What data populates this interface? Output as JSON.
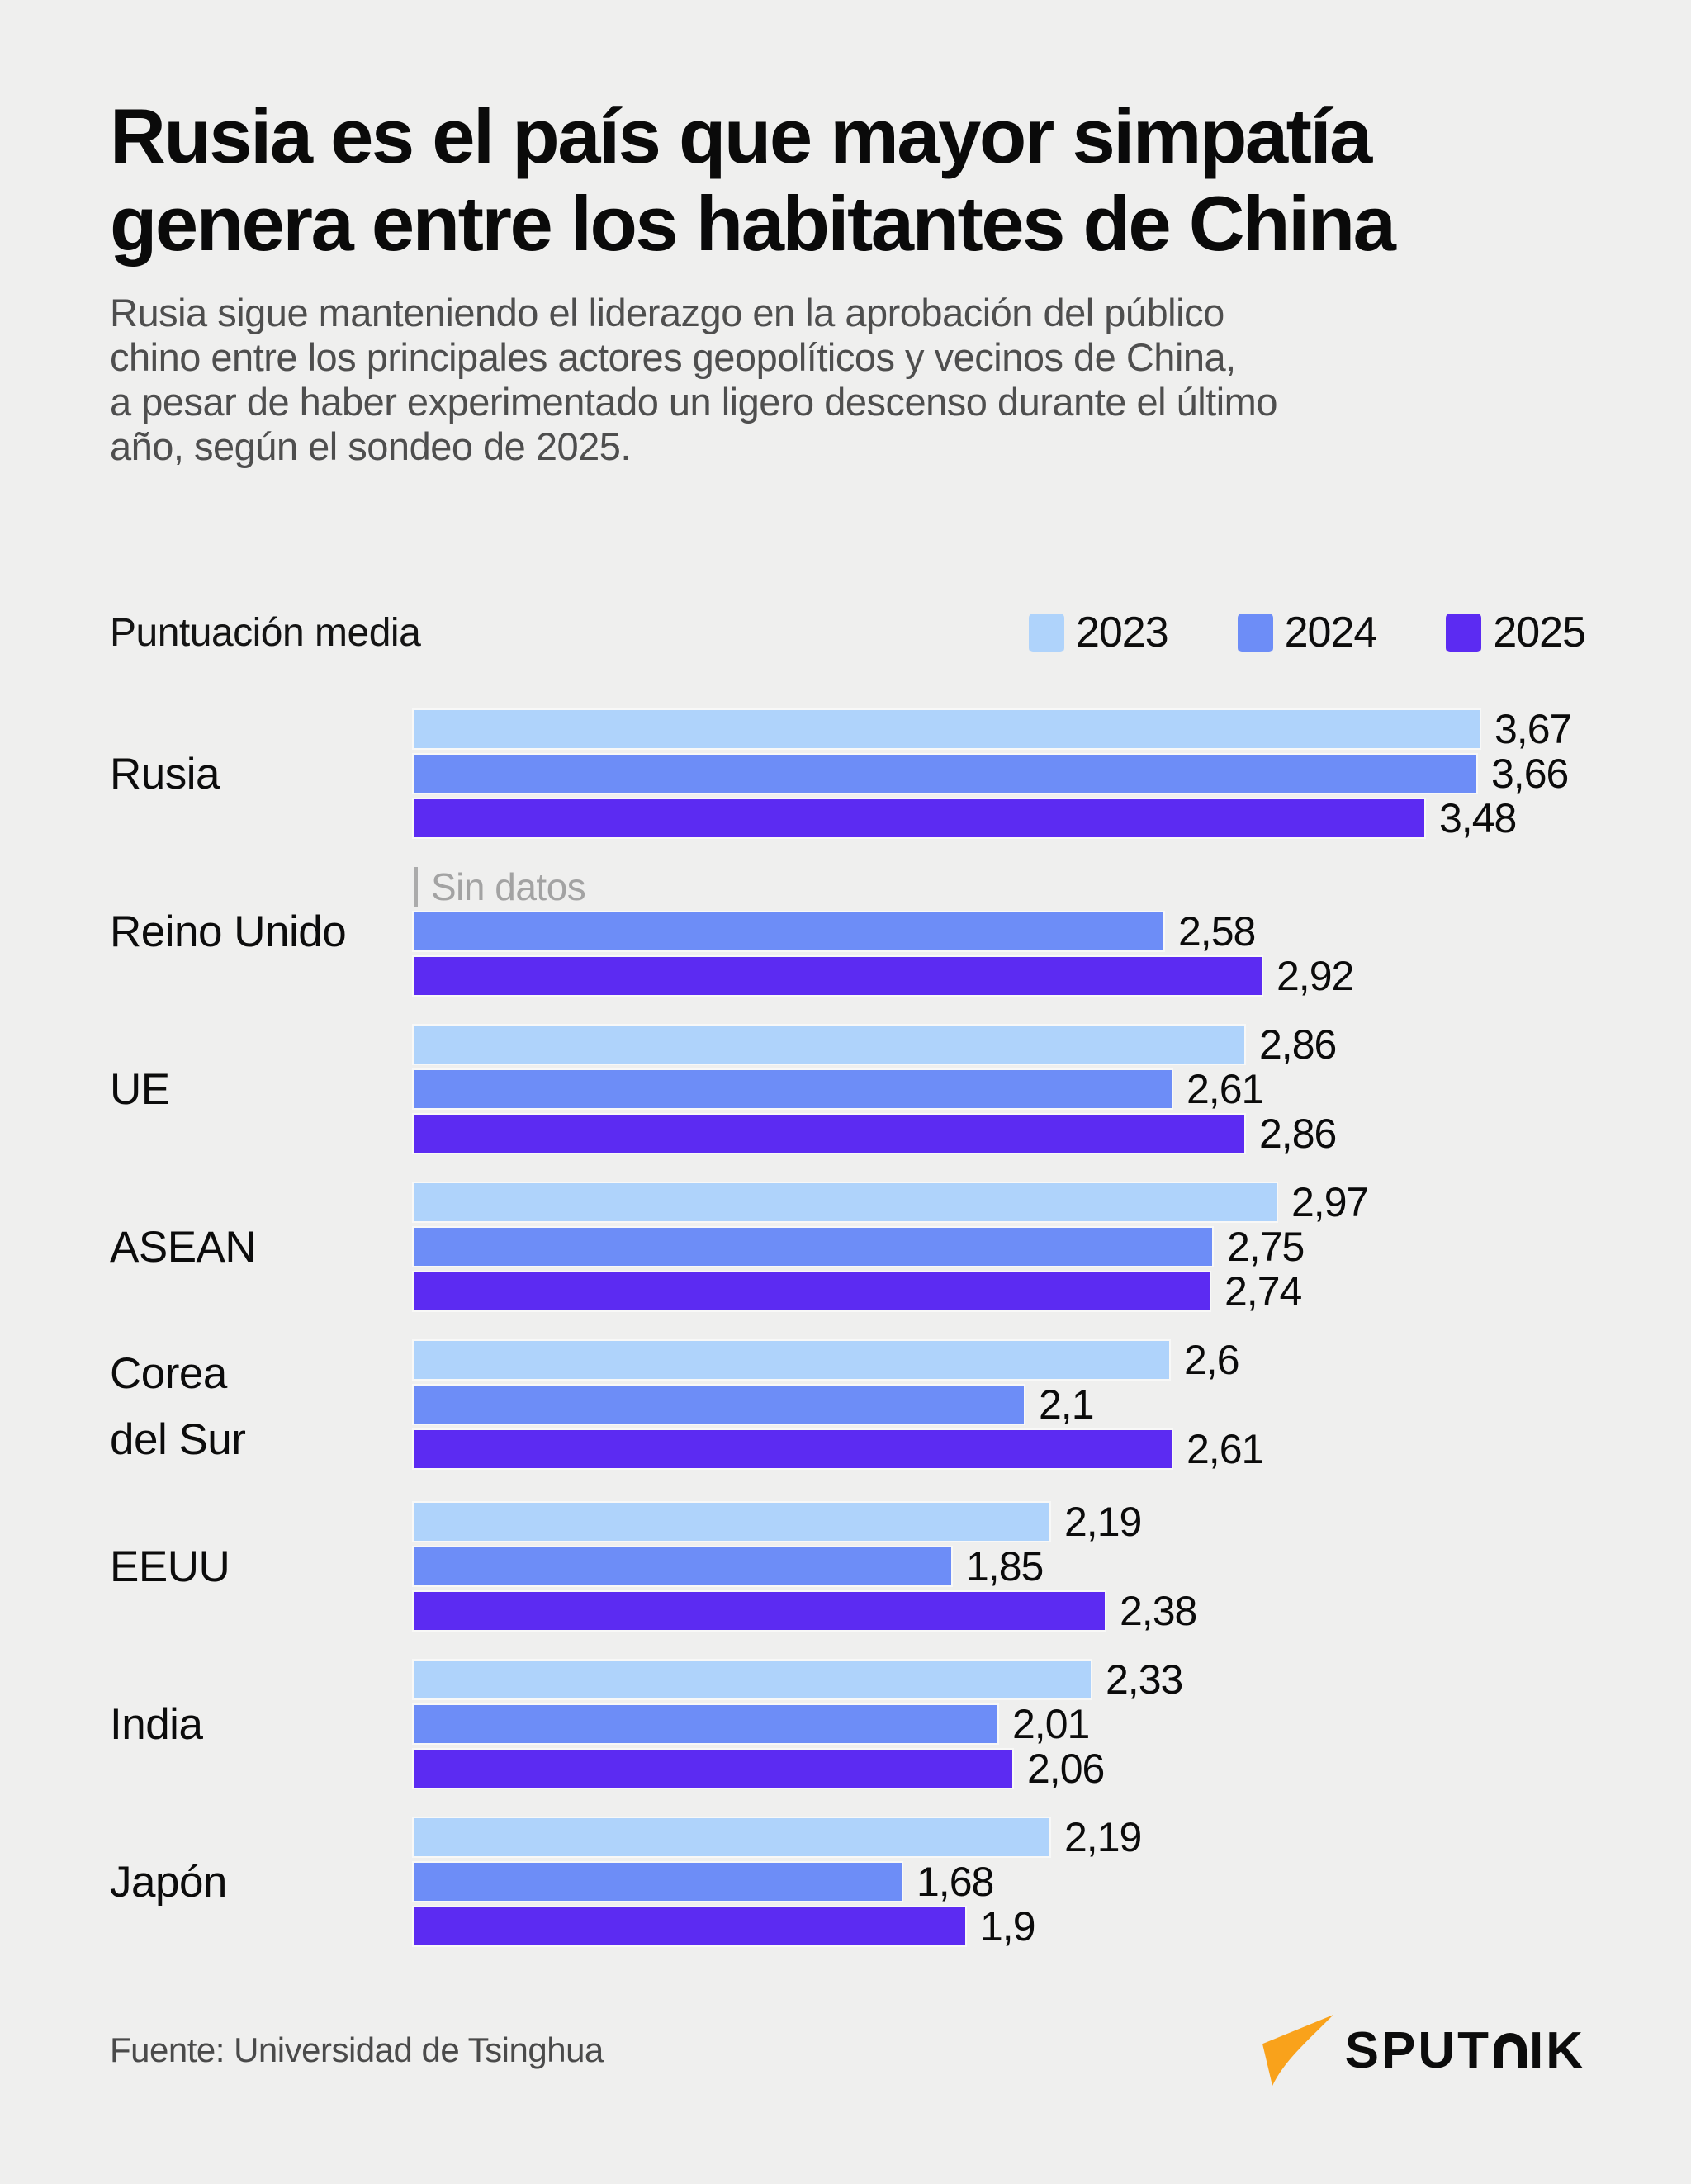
{
  "header": {
    "title": "Rusia es el país que mayor simpatía\ngenera entre los habitantes de China",
    "subtitle": "Rusia sigue manteniendo el liderazgo en la aprobación del público\nchino entre los principales actores geopolíticos y vecinos de China,\na pesar de haber experimentado un ligero descenso durante el último\naño, según el sondeo de 2025."
  },
  "chart_data": {
    "type": "bar",
    "orientation": "horizontal",
    "axis_label": "Puntuación media",
    "xlim": [
      0,
      3.67
    ],
    "grid": false,
    "legend_position": "top-right",
    "categories": [
      "Rusia",
      "Reino Unido",
      "UE",
      "ASEAN",
      "Corea\ndel Sur",
      "EEUU",
      "India",
      "Japón"
    ],
    "series": [
      {
        "name": "2023",
        "color": "#AFD3FB",
        "values": [
          3.67,
          null,
          2.86,
          2.97,
          2.6,
          2.19,
          2.33,
          2.19
        ],
        "labels": [
          "3,67",
          null,
          "2,86",
          "2,97",
          "2,6",
          "2,19",
          "2,33",
          "2,19"
        ]
      },
      {
        "name": "2024",
        "color": "#6D8DF7",
        "values": [
          3.66,
          2.58,
          2.61,
          2.75,
          2.1,
          1.85,
          2.01,
          1.68
        ],
        "labels": [
          "3,66",
          "2,58",
          "2,61",
          "2,75",
          "2,1",
          "1,85",
          "2,01",
          "1,68"
        ]
      },
      {
        "name": "2025",
        "color": "#5C2BF2",
        "values": [
          3.48,
          2.92,
          2.86,
          2.74,
          2.61,
          2.38,
          2.06,
          1.9
        ],
        "labels": [
          "3,48",
          "2,92",
          "2,86",
          "2,74",
          "2,61",
          "2,38",
          "2,06",
          "1,9"
        ]
      }
    ],
    "no_data_label": "Sin datos"
  },
  "footer": {
    "source": "Fuente: Universidad de Tsinghua",
    "brand": "SPUTNIK",
    "brand_color": "#F9A21B"
  }
}
